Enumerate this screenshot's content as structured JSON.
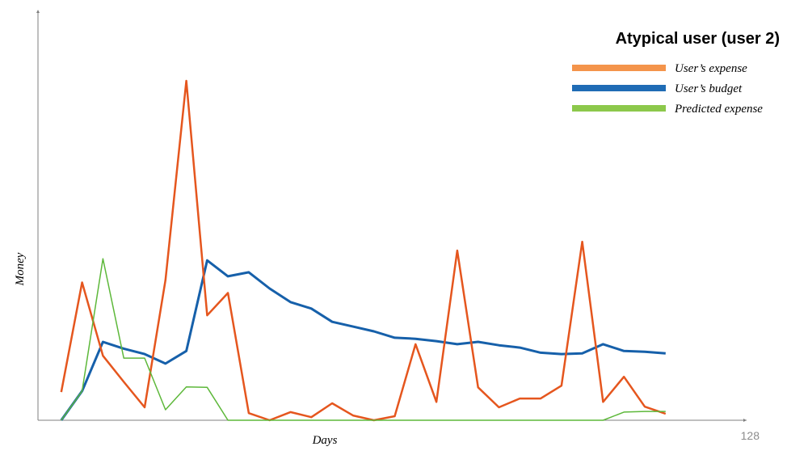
{
  "page_number": "128",
  "chart_data": {
    "type": "line",
    "title": "Atypical user (user 2)",
    "xlabel": "Days",
    "ylabel": "Money",
    "x": [
      1,
      2,
      3,
      4,
      5,
      6,
      7,
      8,
      9,
      10,
      11,
      12,
      13,
      14,
      15,
      16,
      17,
      18,
      19,
      20,
      21,
      22,
      23,
      24,
      25,
      26,
      27,
      28,
      29,
      30
    ],
    "xlim": [
      0,
      34
    ],
    "ylim": [
      0,
      100
    ],
    "grid": false,
    "legend_position": "top-right",
    "series": [
      {
        "name": "User’s expense",
        "color": "#E5561E",
        "legend_color": "#F4944B",
        "values": [
          8.3,
          40.6,
          19.0,
          11.3,
          3.8,
          41.3,
          100.0,
          30.9,
          37.5,
          2.1,
          0.0,
          2.4,
          0.9,
          5.0,
          1.4,
          0.0,
          1.2,
          22.4,
          5.4,
          50.0,
          9.7,
          3.8,
          6.4,
          6.4,
          10.2,
          52.6,
          5.4,
          12.8,
          4.0,
          1.9
        ]
      },
      {
        "name": "User’s budget",
        "color": "#1660AA",
        "legend_color": "#1F6CB5",
        "values": [
          0.0,
          8.6,
          23.1,
          21.1,
          19.5,
          16.7,
          20.4,
          47.1,
          42.4,
          43.6,
          38.8,
          34.8,
          32.9,
          29.0,
          27.6,
          26.2,
          24.3,
          24.0,
          23.3,
          22.4,
          23.1,
          22.1,
          21.4,
          19.9,
          19.5,
          19.7,
          22.4,
          20.4,
          20.2,
          19.7
        ]
      },
      {
        "name": "Predicted expense",
        "color": "#5DB83A",
        "legend_color": "#8CC84B",
        "values": [
          0.0,
          8.6,
          47.6,
          18.3,
          18.3,
          3.1,
          9.8,
          9.7,
          0.0,
          0.0,
          0.0,
          0.0,
          0.0,
          0.0,
          0.0,
          0.0,
          0.0,
          0.0,
          0.0,
          0.0,
          0.0,
          0.0,
          0.0,
          0.0,
          0.0,
          0.0,
          0.0,
          2.4,
          2.6,
          2.6
        ]
      }
    ]
  }
}
